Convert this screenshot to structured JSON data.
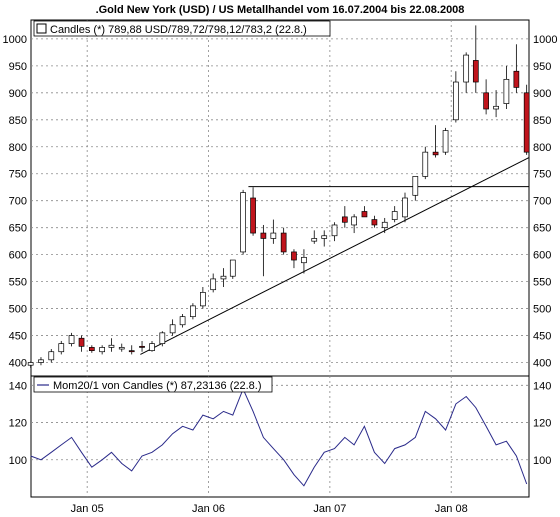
{
  "chart_data": {
    "type": "candlestick",
    "title": ".Gold New York (USD) / US Metallhandel vom 16.07.2004 bis 22.08.2008",
    "grid": true,
    "x_tick_labels": [
      "Jan 05",
      "Jan 06",
      "Jan 07",
      "Jan 08"
    ],
    "x_tick_dates": [
      "2005-01-01",
      "2006-01-01",
      "2007-01-01",
      "2008-01-01"
    ],
    "x_range": [
      "2004-07-16",
      "2008-08-22"
    ],
    "panels": [
      {
        "name": "price",
        "legend": "Candles (*) 789,88 USD/789,72/798,12/783,2 (22.8.)",
        "ylim": [
          375,
          1035
        ],
        "y_ticks": [
          400,
          450,
          500,
          550,
          600,
          650,
          700,
          750,
          800,
          850,
          900,
          950,
          1000
        ],
        "y_tick_labels": [
          "400",
          "450",
          "500",
          "550",
          "600",
          "650",
          "700",
          "750",
          "800",
          "850",
          "900",
          "950",
          "1000"
        ],
        "series": [
          {
            "kind": "candles",
            "x": [
              "2004-07",
              "2004-08",
              "2004-09",
              "2004-10",
              "2004-11",
              "2004-12",
              "2005-01",
              "2005-02",
              "2005-03",
              "2005-04",
              "2005-05",
              "2005-06",
              "2005-07",
              "2005-08",
              "2005-09",
              "2005-10",
              "2005-11",
              "2005-12",
              "2006-01",
              "2006-02",
              "2006-03",
              "2006-04",
              "2006-05",
              "2006-06",
              "2006-07",
              "2006-08",
              "2006-09",
              "2006-10",
              "2006-11",
              "2006-12",
              "2007-01",
              "2007-02",
              "2007-03",
              "2007-04",
              "2007-05",
              "2007-06",
              "2007-07",
              "2007-08",
              "2007-09",
              "2007-10",
              "2007-11",
              "2007-12",
              "2008-01",
              "2008-02",
              "2008-03",
              "2008-04",
              "2008-05",
              "2008-06",
              "2008-07",
              "2008-08"
            ],
            "open": [
              395,
              400,
              405,
              420,
              435,
              445,
              428,
              420,
              428,
              425,
              422,
              430,
              422,
              435,
              455,
              470,
              485,
              505,
              535,
              555,
              560,
              605,
              705,
              640,
              630,
              640,
              605,
              585,
              625,
              630,
              635,
              670,
              655,
              680,
              665,
              650,
              665,
              670,
              710,
              745,
              790,
              790,
              850,
              920,
              960,
              900,
              870,
              880,
              940,
              900
            ],
            "high": [
              402,
              410,
              425,
              440,
              455,
              450,
              432,
              432,
              445,
              435,
              432,
              440,
              440,
              458,
              480,
              490,
              510,
              540,
              565,
              575,
              590,
              720,
              725,
              655,
              665,
              650,
              610,
              610,
              645,
              645,
              660,
              690,
              675,
              690,
              672,
              668,
              690,
              715,
              745,
              800,
              840,
              835,
              940,
              975,
              1025,
              925,
              905,
              950,
              990,
              915
            ],
            "low": [
              390,
              395,
              400,
              415,
              430,
              420,
              418,
              415,
              420,
              420,
              415,
              420,
              420,
              430,
              450,
              465,
              480,
              500,
              530,
              540,
              555,
              600,
              635,
              560,
              620,
              600,
              575,
              565,
              620,
              615,
              625,
              650,
              640,
              670,
              650,
              640,
              660,
              660,
              700,
              740,
              780,
              785,
              845,
              900,
              900,
              860,
              855,
              870,
              900,
              785
            ],
            "close": [
              400,
              405,
              420,
              435,
              450,
              430,
              422,
              428,
              432,
              428,
              420,
              428,
              435,
              455,
              470,
              485,
              505,
              530,
              555,
              560,
              590,
              715,
              640,
              630,
              640,
              605,
              590,
              595,
              630,
              635,
              655,
              660,
              670,
              670,
              655,
              660,
              680,
              705,
              745,
              790,
              785,
              830,
              920,
              970,
              920,
              870,
              875,
              925,
              910,
              790
            ]
          },
          {
            "kind": "line",
            "name": "support",
            "points": [
              {
                "x": "2005-06-10",
                "y": 415
              },
              {
                "x": "2008-08-22",
                "y": 780
              }
            ]
          },
          {
            "kind": "line",
            "name": "resistance",
            "points": [
              {
                "x": "2006-05-01",
                "y": 726
              },
              {
                "x": "2008-08-22",
                "y": 726
              }
            ]
          }
        ]
      },
      {
        "name": "momentum",
        "legend": "Mom20/1 von Candles (*) 87,23136 (22.8.)",
        "ylim": [
          80,
          145
        ],
        "y_ticks": [
          100,
          120,
          140
        ],
        "y_tick_labels": [
          "100",
          "120",
          "140"
        ],
        "series": [
          {
            "kind": "line",
            "x": [
              "2004-07",
              "2004-08",
              "2004-09",
              "2004-10",
              "2004-11",
              "2004-12",
              "2005-01",
              "2005-02",
              "2005-03",
              "2005-04",
              "2005-05",
              "2005-06",
              "2005-07",
              "2005-08",
              "2005-09",
              "2005-10",
              "2005-11",
              "2005-12",
              "2006-01",
              "2006-02",
              "2006-03",
              "2006-04",
              "2006-05",
              "2006-06",
              "2006-07",
              "2006-08",
              "2006-09",
              "2006-10",
              "2006-11",
              "2006-12",
              "2007-01",
              "2007-02",
              "2007-03",
              "2007-04",
              "2007-05",
              "2007-06",
              "2007-07",
              "2007-08",
              "2007-09",
              "2007-10",
              "2007-11",
              "2007-12",
              "2008-01",
              "2008-02",
              "2008-03",
              "2008-04",
              "2008-05",
              "2008-06",
              "2008-07",
              "2008-08"
            ],
            "values": [
              102,
              100,
              104,
              108,
              112,
              104,
              96,
              100,
              104,
              98,
              94,
              102,
              104,
              108,
              114,
              118,
              116,
              124,
              122,
              126,
              124,
              138,
              126,
              112,
              106,
              100,
              92,
              86,
              96,
              104,
              106,
              112,
              108,
              118,
              104,
              98,
              106,
              108,
              112,
              126,
              122,
              116,
              130,
              134,
              128,
              118,
              108,
              110,
              102,
              87
            ]
          }
        ]
      }
    ]
  }
}
